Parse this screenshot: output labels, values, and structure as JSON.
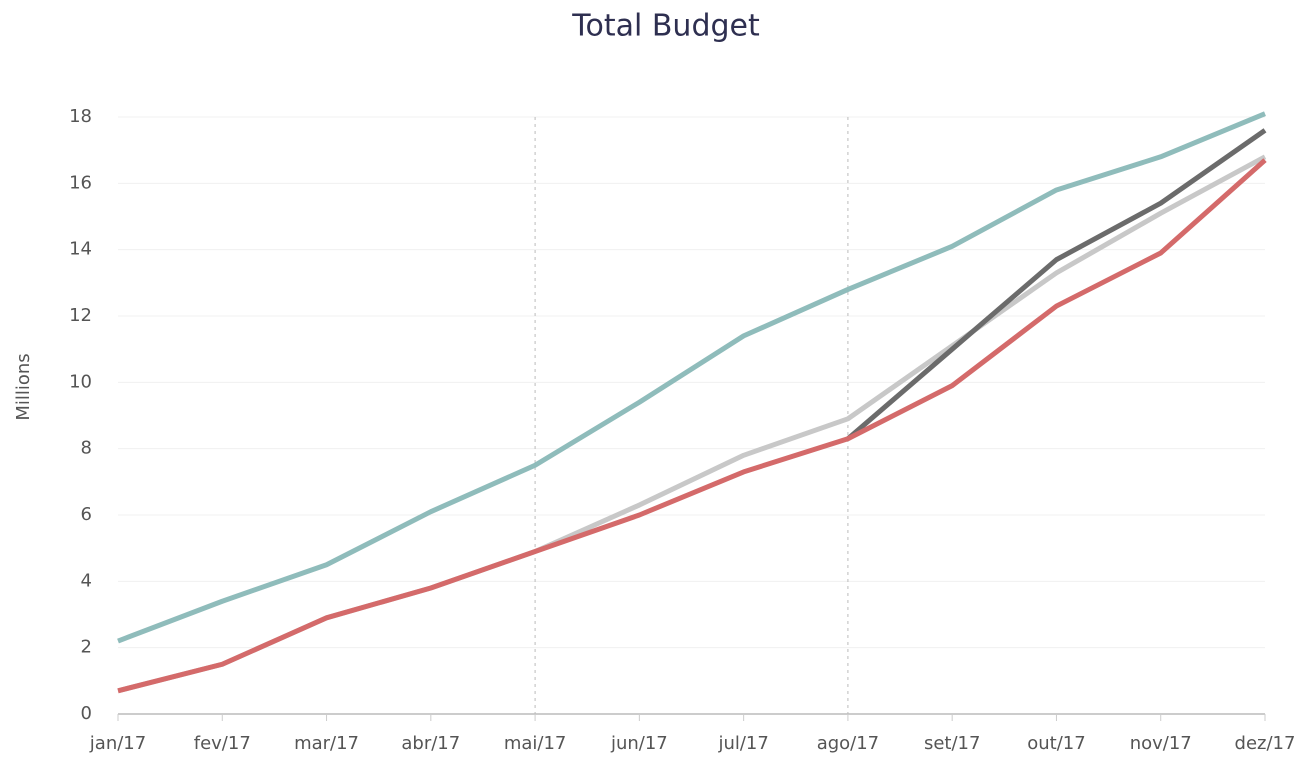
{
  "chart_data": {
    "type": "line",
    "title": "Total Budget",
    "y_label": "Millions",
    "categories": [
      "jan/17",
      "fev/17",
      "mar/17",
      "abr/17",
      "mai/17",
      "jun/17",
      "jul/17",
      "ago/17",
      "set/17",
      "out/17",
      "nov/17",
      "dez/17"
    ],
    "series": [
      {
        "color": "#8fbcbb",
        "values": [
          2.2,
          3.4,
          4.5,
          6.1,
          7.5,
          9.4,
          11.4,
          12.8,
          14.1,
          15.8,
          16.8,
          18.1
        ]
      },
      {
        "color": "#c8c8c8",
        "values": [
          0.7,
          1.5,
          2.9,
          3.8,
          4.9,
          6.3,
          7.8,
          8.9,
          11.1,
          13.3,
          15.1,
          16.8
        ]
      },
      {
        "color": "#6b6b6b",
        "values": [
          null,
          null,
          null,
          null,
          null,
          null,
          null,
          8.3,
          11.0,
          13.7,
          15.4,
          17.6
        ]
      },
      {
        "color": "#d46a6a",
        "values": [
          0.7,
          1.5,
          2.9,
          3.8,
          4.9,
          6.0,
          7.3,
          8.3,
          9.9,
          12.3,
          13.9,
          16.7
        ]
      }
    ],
    "ylim": [
      0,
      18
    ],
    "yticks": [
      0,
      2,
      4,
      6,
      8,
      10,
      12,
      14,
      16,
      18
    ],
    "grid": true
  }
}
